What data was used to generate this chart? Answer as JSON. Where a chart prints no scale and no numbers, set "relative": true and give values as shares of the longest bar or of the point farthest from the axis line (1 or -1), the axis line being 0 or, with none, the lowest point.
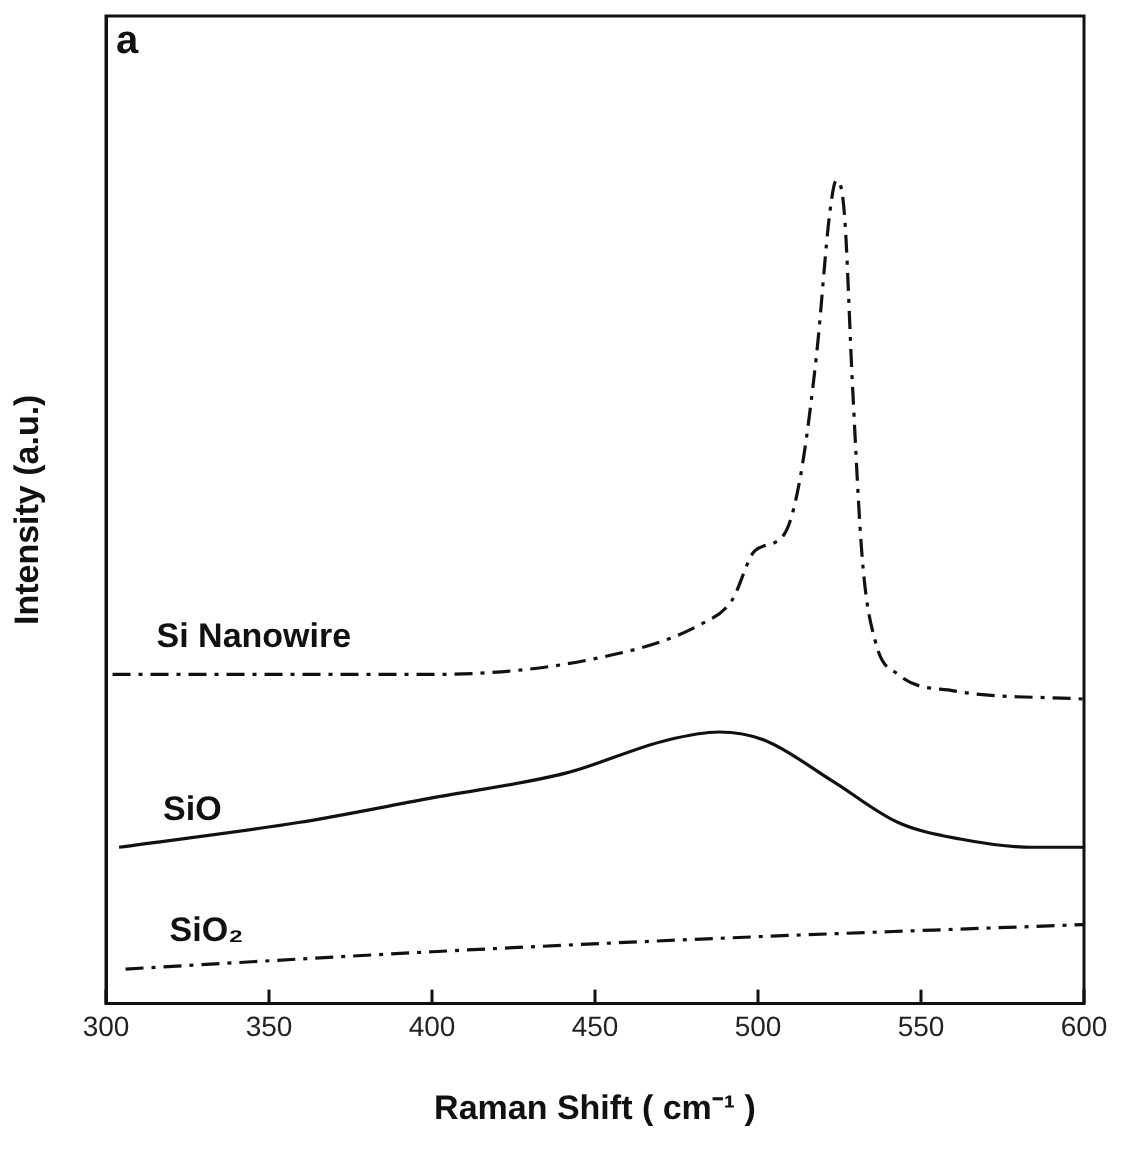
{
  "chart_data": {
    "type": "line",
    "xlabel": "Raman Shift ( cm⁻¹ )",
    "ylabel": "Intensity (a.u.)",
    "annotations": [
      "a"
    ],
    "relative": true,
    "xlim": [
      300,
      600
    ],
    "xticks": [
      300,
      350,
      400,
      450,
      500,
      550,
      600
    ],
    "grid": false,
    "legend": false,
    "marker": "none",
    "series": [
      {
        "name": "Si Nanowire",
        "color": "#111111",
        "line_style": "dashed",
        "x": [
          302,
          400,
          451,
          482,
          492,
          499,
          508,
          513,
          518,
          522,
          524,
          526.5,
          529,
          532,
          536,
          543,
          560,
          600
        ],
        "values": [
          0.4,
          0.4,
          0.42,
          0.46,
          0.49,
          0.55,
          0.57,
          0.64,
          0.79,
          0.96,
          1.0,
          0.96,
          0.75,
          0.54,
          0.44,
          0.4,
          0.38,
          0.37
        ]
      },
      {
        "name": "SiO",
        "color": "#111111",
        "line_style": "solid",
        "x": [
          304,
          359,
          400,
          441,
          472,
          488,
          502,
          523,
          543,
          562,
          584,
          600
        ],
        "values": [
          0.19,
          0.22,
          0.25,
          0.28,
          0.32,
          0.33,
          0.32,
          0.27,
          0.22,
          0.2,
          0.19,
          0.19
        ]
      },
      {
        "name": "SiO₂",
        "color": "#111111",
        "line_style": "dashed",
        "x": [
          306,
          400,
          492,
          600
        ],
        "values": [
          0.042,
          0.063,
          0.08,
          0.096
        ]
      }
    ]
  }
}
